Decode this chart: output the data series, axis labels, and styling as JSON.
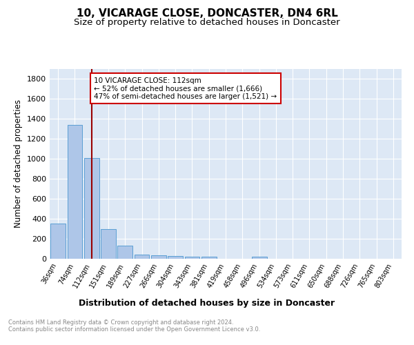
{
  "title": "10, VICARAGE CLOSE, DONCASTER, DN4 6RL",
  "subtitle": "Size of property relative to detached houses in Doncaster",
  "xlabel": "Distribution of detached houses by size in Doncaster",
  "ylabel": "Number of detached properties",
  "categories": [
    "36sqm",
    "74sqm",
    "112sqm",
    "151sqm",
    "189sqm",
    "227sqm",
    "266sqm",
    "304sqm",
    "343sqm",
    "381sqm",
    "419sqm",
    "458sqm",
    "496sqm",
    "534sqm",
    "573sqm",
    "611sqm",
    "650sqm",
    "688sqm",
    "726sqm",
    "765sqm",
    "803sqm"
  ],
  "values": [
    355,
    1340,
    1010,
    295,
    130,
    40,
    38,
    30,
    22,
    18,
    0,
    0,
    22,
    0,
    0,
    0,
    0,
    0,
    0,
    0,
    0
  ],
  "bar_color": "#aec6e8",
  "bar_edge_color": "#5a9fd4",
  "highlight_index": 2,
  "annotation_text": "10 VICARAGE CLOSE: 112sqm\n← 52% of detached houses are smaller (1,666)\n47% of semi-detached houses are larger (1,521) →",
  "annotation_box_color": "#ffffff",
  "annotation_box_edge_color": "#cc0000",
  "ylim": [
    0,
    1900
  ],
  "yticks": [
    0,
    200,
    400,
    600,
    800,
    1000,
    1200,
    1400,
    1600,
    1800
  ],
  "bg_color": "#dde8f5",
  "grid_color": "#ffffff",
  "footer_text": "Contains HM Land Registry data © Crown copyright and database right 2024.\nContains public sector information licensed under the Open Government Licence v3.0.",
  "title_fontsize": 11,
  "subtitle_fontsize": 9.5,
  "xlabel_fontsize": 9,
  "ylabel_fontsize": 8.5
}
